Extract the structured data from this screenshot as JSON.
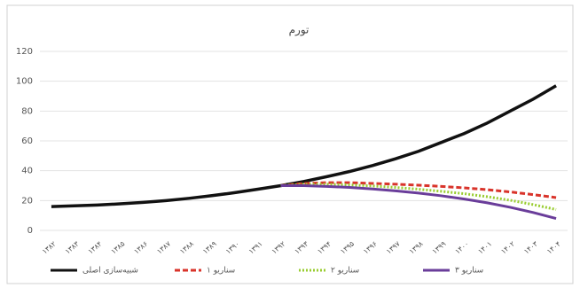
{
  "chart_data": {
    "type": "line",
    "title": "تورم",
    "categories": [
      "۱۳۸۲",
      "۱۳۸۳",
      "۱۳۸۴",
      "۱۳۸۵",
      "۱۳۸۶",
      "۱۳۸۷",
      "۱۳۸۸",
      "۱۳۸۹",
      "۱۳۹۰",
      "۱۳۹۱",
      "۱۳۹۲",
      "۱۳۹۳",
      "۱۳۹۴",
      "۱۳۹۵",
      "۱۳۹۶",
      "۱۳۹۷",
      "۱۳۹۸",
      "۱۳۹۹",
      "۱۴۰۰",
      "۱۴۰۱",
      "۱۴۰۲",
      "۱۴۰۳",
      "۱۴۰۴"
    ],
    "series": [
      {
        "name": "شبیه‌سازی اصلی",
        "color": "#111111",
        "dash": "solid",
        "values": [
          16,
          16.5,
          17,
          17.8,
          18.8,
          20,
          21.5,
          23.3,
          25.3,
          27.6,
          30,
          32.8,
          36,
          39.5,
          43.5,
          48,
          53,
          59,
          65,
          72,
          80,
          88,
          97
        ]
      },
      {
        "name": "سناریو ۱",
        "color": "#d9342b",
        "dash": "dashed",
        "values": [
          null,
          null,
          null,
          null,
          null,
          null,
          null,
          null,
          null,
          null,
          30,
          31.5,
          32,
          32,
          31.5,
          31,
          30.3,
          29.5,
          28.5,
          27.3,
          25.8,
          24,
          22
        ]
      },
      {
        "name": "سناریو ۲",
        "color": "#9acd32",
        "dash": "dotted",
        "values": [
          null,
          null,
          null,
          null,
          null,
          null,
          null,
          null,
          null,
          null,
          30,
          31,
          31,
          30.5,
          29.8,
          28.8,
          27.6,
          26.2,
          24.6,
          22.6,
          20.2,
          17.3,
          14
        ]
      },
      {
        "name": "سناریو ۳",
        "color": "#6a3d9a",
        "dash": "solid",
        "values": [
          null,
          null,
          null,
          null,
          null,
          null,
          null,
          null,
          null,
          null,
          30,
          30,
          29.5,
          28.8,
          27.8,
          26.5,
          25,
          23.2,
          21,
          18.5,
          15.5,
          12,
          8
        ]
      }
    ],
    "ylim": [
      0,
      120
    ],
    "yticks": [
      0,
      20,
      40,
      60,
      80,
      100,
      120
    ],
    "grid": true,
    "legend": "bottom"
  }
}
